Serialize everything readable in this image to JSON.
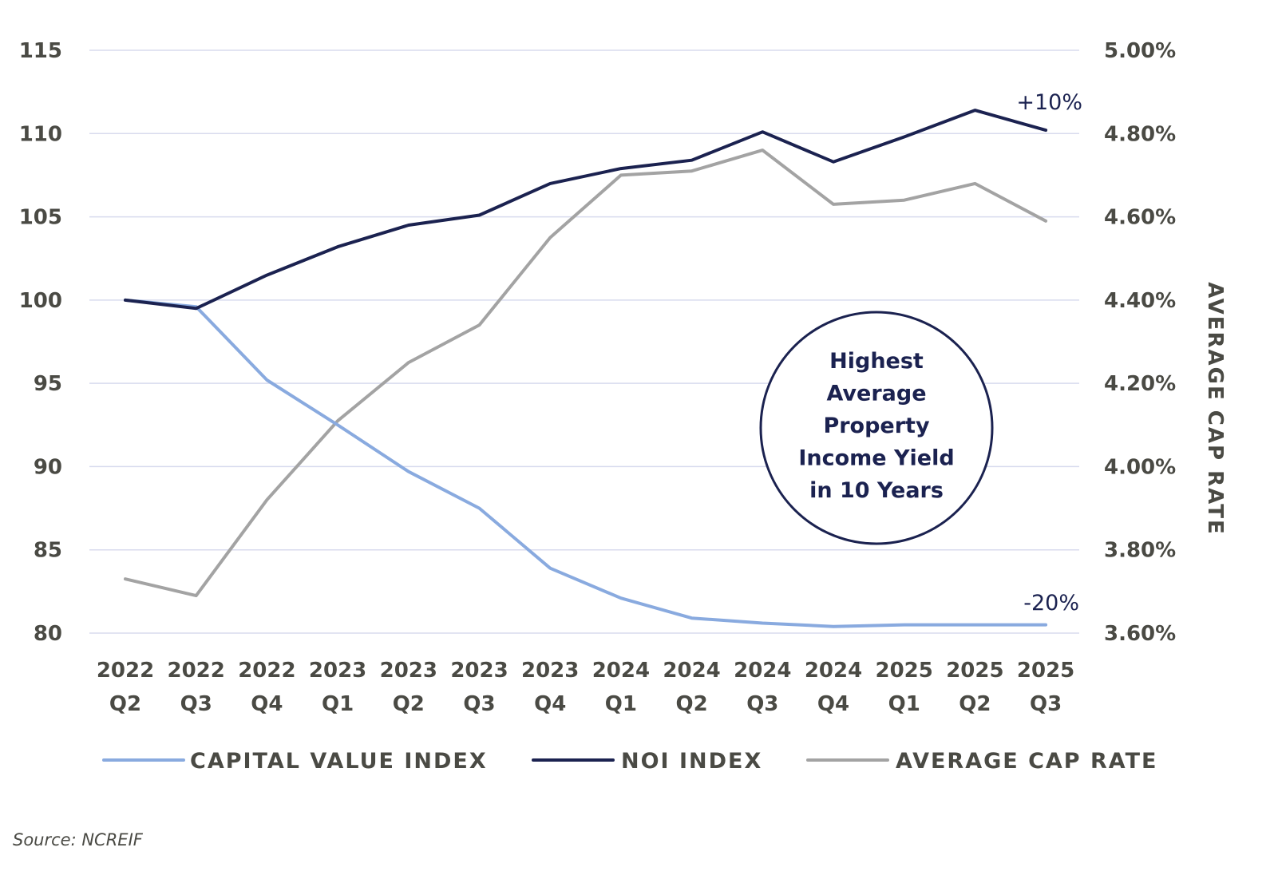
{
  "colors": {
    "capital_value": "#89aadf",
    "noi": "#1b2250",
    "cap_rate": "#a3a3a3",
    "grid": "#d8dbee",
    "text": "#4a4a44"
  },
  "chart_data": {
    "type": "line",
    "categories": [
      [
        "2022",
        "Q2"
      ],
      [
        "2022",
        "Q3"
      ],
      [
        "2022",
        "Q4"
      ],
      [
        "2023",
        "Q1"
      ],
      [
        "2023",
        "Q2"
      ],
      [
        "2023",
        "Q3"
      ],
      [
        "2023",
        "Q4"
      ],
      [
        "2024",
        "Q1"
      ],
      [
        "2024",
        "Q2"
      ],
      [
        "2024",
        "Q3"
      ],
      [
        "2024",
        "Q4"
      ],
      [
        "2025",
        "Q1"
      ],
      [
        "2025",
        "Q2"
      ],
      [
        "2025",
        "Q3"
      ]
    ],
    "y_left": {
      "ticks": [
        "115",
        "110",
        "105",
        "100",
        "95",
        "90",
        "85",
        "80"
      ],
      "ylim": [
        80,
        115
      ]
    },
    "y_right": {
      "label": "AVERAGE CAP RATE",
      "ticks": [
        "5.00%",
        "4.80%",
        "4.60%",
        "4.40%",
        "4.20%",
        "4.00%",
        "3.80%",
        "3.60%"
      ],
      "ylim": [
        3.6,
        5.0
      ]
    },
    "grid": true,
    "legend_position": "bottom",
    "series": [
      {
        "name": "CAPITAL VALUE INDEX",
        "axis": "left",
        "values": [
          100.0,
          99.6,
          95.2,
          92.5,
          89.7,
          87.5,
          83.9,
          82.1,
          80.9,
          80.6,
          80.4,
          80.5,
          80.5,
          80.5
        ]
      },
      {
        "name": "NOI INDEX",
        "axis": "left",
        "values": [
          100.0,
          99.5,
          101.5,
          103.2,
          104.5,
          105.1,
          107.0,
          107.9,
          108.4,
          110.1,
          108.3,
          109.8,
          111.4,
          110.2
        ]
      },
      {
        "name": "AVERAGE CAP RATE",
        "axis": "right",
        "values": [
          3.73,
          3.69,
          3.92,
          4.11,
          4.25,
          4.34,
          4.55,
          4.7,
          4.71,
          4.76,
          4.63,
          4.64,
          4.68,
          4.59
        ]
      }
    ],
    "annotations": {
      "noi_end": "+10%",
      "capital_end": "-20%",
      "callout_lines": [
        "Highest",
        "Average",
        "Property",
        "Income Yield",
        "in 10 Years"
      ]
    },
    "source": "Source: NCREIF"
  }
}
